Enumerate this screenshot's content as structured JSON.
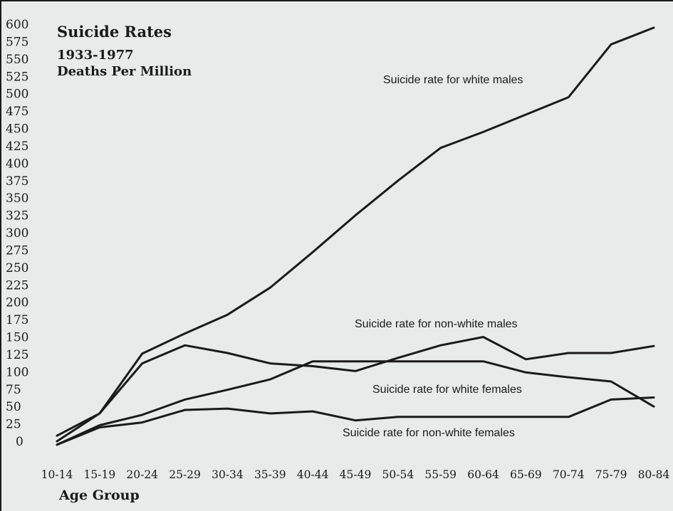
{
  "chart_data": {
    "type": "line",
    "title": "Suicide Rates",
    "subtitle": "1933-1977",
    "subtitle2": "Deaths Per Million",
    "xlabel": "Age Group",
    "ylabel": "",
    "ylim": [
      0,
      600
    ],
    "y_ticks": [
      "600",
      "575",
      "550",
      "525",
      "500",
      "475",
      "450",
      "425",
      "400",
      "375",
      "350",
      "325",
      "300",
      "275",
      "250",
      "225",
      "200",
      "175",
      "150",
      "125",
      "100",
      "75",
      "50",
      "25",
      "0"
    ],
    "categories": [
      "10-14",
      "15-19",
      "20-24",
      "25-29",
      "30-34",
      "35-39",
      "40-44",
      "45-49",
      "50-54",
      "55-59",
      "60-64",
      "65-69",
      "70-74",
      "75-79",
      "80-84"
    ],
    "grid": false,
    "legend": "labels placed beside lines",
    "series": [
      {
        "name": "Suicide rate for white males",
        "values": [
          8,
          40,
          126,
          155,
          182,
          221,
          272,
          325,
          375,
          422,
          445,
          470,
          495,
          571,
          595
        ]
      },
      {
        "name": "Suicide rate for non-white males",
        "values": [
          0,
          40,
          112,
          138,
          127,
          112,
          108,
          101,
          120,
          138,
          150,
          118,
          127,
          127,
          137
        ]
      },
      {
        "name": "Suicide rate for white females",
        "values": [
          -5,
          23,
          38,
          60,
          74,
          89,
          115,
          115,
          115,
          115,
          115,
          99,
          92,
          86,
          50
        ]
      },
      {
        "name": "Suicide rate for non-white females",
        "values": [
          -5,
          20,
          27,
          45,
          47,
          40,
          43,
          30,
          35,
          35,
          35,
          35,
          35,
          60,
          63
        ]
      }
    ]
  }
}
